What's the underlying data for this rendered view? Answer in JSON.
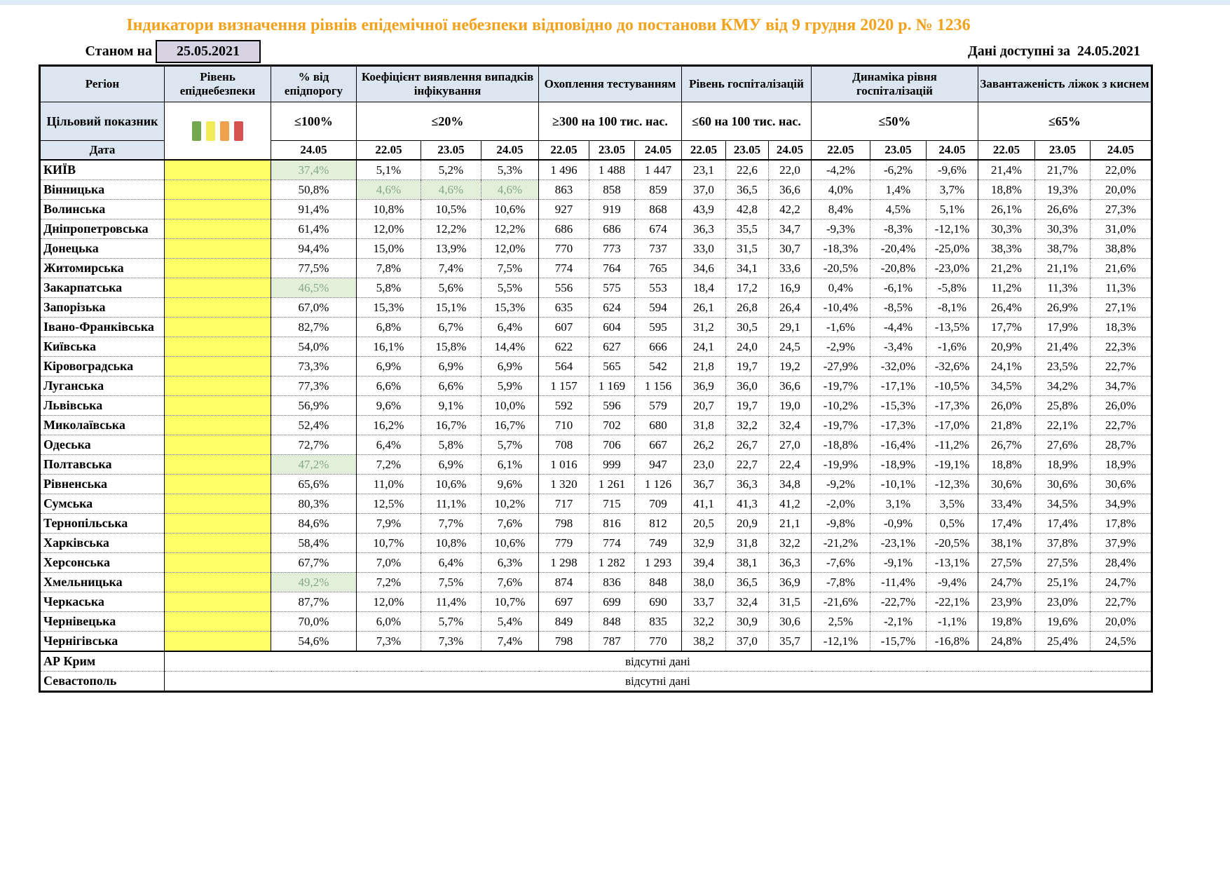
{
  "title": "Індикатори визначення рівнів епідемічної небезпеки відповідно до постанови КМУ від 9 грудня 2020 р. № 1236",
  "as_of": {
    "label": "Станом на",
    "date": "25.05.2021"
  },
  "available": {
    "label": "Дані доступні за",
    "date": "24.05.2021"
  },
  "colors": {
    "title_orange": "#F2A21C",
    "header_blue": "#DCE6F1",
    "level_yellow": "#FFFF66",
    "highlight_green_bg": "#E2EFDA",
    "highlight_green_text": "#85A785",
    "asof_box_lavender": "#D7D3E3"
  },
  "header": {
    "region": "Регіон",
    "target_label": "Цільовий показник",
    "date_label": "Дата",
    "legend_colors": [
      "#74A850",
      "#F1EB57",
      "#EFA14D",
      "#D5524F"
    ],
    "groups": [
      {
        "label": "Рівень епіднебезпеки",
        "target": "",
        "dates": []
      },
      {
        "label": "% від епідпорогу",
        "target": "≤100%",
        "dates": [
          "24.05"
        ]
      },
      {
        "label": "Коефіцієнт виявлення випадків інфікування",
        "target": "≤20%",
        "dates": [
          "22.05",
          "23.05",
          "24.05"
        ]
      },
      {
        "label": "Охоплення тестуванням",
        "target": "≥300 на 100 тис. нас.",
        "dates": [
          "22.05",
          "23.05",
          "24.05"
        ]
      },
      {
        "label": "Рівень госпіталізацій",
        "target": "≤60 на 100 тис. нас.",
        "dates": [
          "22.05",
          "23.05",
          "24.05"
        ]
      },
      {
        "label": "Динаміка рівня госпіталізацій",
        "target": "≤50%",
        "dates": [
          "22.05",
          "23.05",
          "24.05"
        ]
      },
      {
        "label": "Завантаженість ліжок з киснем",
        "target": "≤65%",
        "dates": [
          "22.05",
          "23.05",
          "24.05"
        ]
      }
    ]
  },
  "rows": [
    {
      "region": "КИЇВ",
      "pct": "37,4%",
      "pct_green": true,
      "coef": [
        "5,1%",
        "5,2%",
        "5,3%"
      ],
      "coef_green": false,
      "test": [
        "1 496",
        "1 488",
        "1 447"
      ],
      "hosp": [
        "23,1",
        "22,6",
        "22,0"
      ],
      "dyn": [
        "-4,2%",
        "-6,2%",
        "-9,6%"
      ],
      "oxy": [
        "21,4%",
        "21,7%",
        "22,0%"
      ]
    },
    {
      "region": "Вінницька",
      "pct": "50,8%",
      "pct_green": false,
      "coef": [
        "4,6%",
        "4,6%",
        "4,6%"
      ],
      "coef_green": true,
      "test": [
        "863",
        "858",
        "859"
      ],
      "hosp": [
        "37,0",
        "36,5",
        "36,6"
      ],
      "dyn": [
        "4,0%",
        "1,4%",
        "3,7%"
      ],
      "oxy": [
        "18,8%",
        "19,3%",
        "20,0%"
      ]
    },
    {
      "region": "Волинська",
      "pct": "91,4%",
      "pct_green": false,
      "coef": [
        "10,8%",
        "10,5%",
        "10,6%"
      ],
      "coef_green": false,
      "test": [
        "927",
        "919",
        "868"
      ],
      "hosp": [
        "43,9",
        "42,8",
        "42,2"
      ],
      "dyn": [
        "8,4%",
        "4,5%",
        "5,1%"
      ],
      "oxy": [
        "26,1%",
        "26,6%",
        "27,3%"
      ]
    },
    {
      "region": "Дніпропетровська",
      "pct": "61,4%",
      "pct_green": false,
      "coef": [
        "12,0%",
        "12,2%",
        "12,2%"
      ],
      "coef_green": false,
      "test": [
        "686",
        "686",
        "674"
      ],
      "hosp": [
        "36,3",
        "35,5",
        "34,7"
      ],
      "dyn": [
        "-9,3%",
        "-8,3%",
        "-12,1%"
      ],
      "oxy": [
        "30,3%",
        "30,3%",
        "31,0%"
      ]
    },
    {
      "region": "Донецька",
      "pct": "94,4%",
      "pct_green": false,
      "coef": [
        "15,0%",
        "13,9%",
        "12,0%"
      ],
      "coef_green": false,
      "test": [
        "770",
        "773",
        "737"
      ],
      "hosp": [
        "33,0",
        "31,5",
        "30,7"
      ],
      "dyn": [
        "-18,3%",
        "-20,4%",
        "-25,0%"
      ],
      "oxy": [
        "38,3%",
        "38,7%",
        "38,8%"
      ]
    },
    {
      "region": "Житомирська",
      "pct": "77,5%",
      "pct_green": false,
      "coef": [
        "7,8%",
        "7,4%",
        "7,5%"
      ],
      "coef_green": false,
      "test": [
        "774",
        "764",
        "765"
      ],
      "hosp": [
        "34,6",
        "34,1",
        "33,6"
      ],
      "dyn": [
        "-20,5%",
        "-20,8%",
        "-23,0%"
      ],
      "oxy": [
        "21,2%",
        "21,1%",
        "21,6%"
      ]
    },
    {
      "region": "Закарпатська",
      "pct": "46,5%",
      "pct_green": true,
      "coef": [
        "5,8%",
        "5,6%",
        "5,5%"
      ],
      "coef_green": false,
      "test": [
        "556",
        "575",
        "553"
      ],
      "hosp": [
        "18,4",
        "17,2",
        "16,9"
      ],
      "dyn": [
        "0,4%",
        "-6,1%",
        "-5,8%"
      ],
      "oxy": [
        "11,2%",
        "11,3%",
        "11,3%"
      ]
    },
    {
      "region": "Запорізька",
      "pct": "67,0%",
      "pct_green": false,
      "coef": [
        "15,3%",
        "15,1%",
        "15,3%"
      ],
      "coef_green": false,
      "test": [
        "635",
        "624",
        "594"
      ],
      "hosp": [
        "26,1",
        "26,8",
        "26,4"
      ],
      "dyn": [
        "-10,4%",
        "-8,5%",
        "-8,1%"
      ],
      "oxy": [
        "26,4%",
        "26,9%",
        "27,1%"
      ]
    },
    {
      "region": "Івано-Франківська",
      "pct": "82,7%",
      "pct_green": false,
      "coef": [
        "6,8%",
        "6,7%",
        "6,4%"
      ],
      "coef_green": false,
      "test": [
        "607",
        "604",
        "595"
      ],
      "hosp": [
        "31,2",
        "30,5",
        "29,1"
      ],
      "dyn": [
        "-1,6%",
        "-4,4%",
        "-13,5%"
      ],
      "oxy": [
        "17,7%",
        "17,9%",
        "18,3%"
      ]
    },
    {
      "region": "Київська",
      "pct": "54,0%",
      "pct_green": false,
      "coef": [
        "16,1%",
        "15,8%",
        "14,4%"
      ],
      "coef_green": false,
      "test": [
        "622",
        "627",
        "666"
      ],
      "hosp": [
        "24,1",
        "24,0",
        "24,5"
      ],
      "dyn": [
        "-2,9%",
        "-3,4%",
        "-1,6%"
      ],
      "oxy": [
        "20,9%",
        "21,4%",
        "22,3%"
      ]
    },
    {
      "region": "Кіровоградська",
      "pct": "73,3%",
      "pct_green": false,
      "coef": [
        "6,9%",
        "6,9%",
        "6,9%"
      ],
      "coef_green": false,
      "test": [
        "564",
        "565",
        "542"
      ],
      "hosp": [
        "21,8",
        "19,7",
        "19,2"
      ],
      "dyn": [
        "-27,9%",
        "-32,0%",
        "-32,6%"
      ],
      "oxy": [
        "24,1%",
        "23,5%",
        "22,7%"
      ]
    },
    {
      "region": "Луганська",
      "pct": "77,3%",
      "pct_green": false,
      "coef": [
        "6,6%",
        "6,6%",
        "5,9%"
      ],
      "coef_green": false,
      "test": [
        "1 157",
        "1 169",
        "1 156"
      ],
      "hosp": [
        "36,9",
        "36,0",
        "36,6"
      ],
      "dyn": [
        "-19,7%",
        "-17,1%",
        "-10,5%"
      ],
      "oxy": [
        "34,5%",
        "34,2%",
        "34,7%"
      ]
    },
    {
      "region": "Львівська",
      "pct": "56,9%",
      "pct_green": false,
      "coef": [
        "9,6%",
        "9,1%",
        "10,0%"
      ],
      "coef_green": false,
      "test": [
        "592",
        "596",
        "579"
      ],
      "hosp": [
        "20,7",
        "19,7",
        "19,0"
      ],
      "dyn": [
        "-10,2%",
        "-15,3%",
        "-17,3%"
      ],
      "oxy": [
        "26,0%",
        "25,8%",
        "26,0%"
      ]
    },
    {
      "region": "Миколаївська",
      "pct": "52,4%",
      "pct_green": false,
      "coef": [
        "16,2%",
        "16,7%",
        "16,7%"
      ],
      "coef_green": false,
      "test": [
        "710",
        "702",
        "680"
      ],
      "hosp": [
        "31,8",
        "32,2",
        "32,4"
      ],
      "dyn": [
        "-19,7%",
        "-17,3%",
        "-17,0%"
      ],
      "oxy": [
        "21,8%",
        "22,1%",
        "22,7%"
      ]
    },
    {
      "region": "Одеська",
      "pct": "72,7%",
      "pct_green": false,
      "coef": [
        "6,4%",
        "5,8%",
        "5,7%"
      ],
      "coef_green": false,
      "test": [
        "708",
        "706",
        "667"
      ],
      "hosp": [
        "26,2",
        "26,7",
        "27,0"
      ],
      "dyn": [
        "-18,8%",
        "-16,4%",
        "-11,2%"
      ],
      "oxy": [
        "26,7%",
        "27,6%",
        "28,7%"
      ]
    },
    {
      "region": "Полтавська",
      "pct": "47,2%",
      "pct_green": true,
      "coef": [
        "7,2%",
        "6,9%",
        "6,1%"
      ],
      "coef_green": false,
      "test": [
        "1 016",
        "999",
        "947"
      ],
      "hosp": [
        "23,0",
        "22,7",
        "22,4"
      ],
      "dyn": [
        "-19,9%",
        "-18,9%",
        "-19,1%"
      ],
      "oxy": [
        "18,8%",
        "18,9%",
        "18,9%"
      ]
    },
    {
      "region": "Рівненська",
      "pct": "65,6%",
      "pct_green": false,
      "coef": [
        "11,0%",
        "10,6%",
        "9,6%"
      ],
      "coef_green": false,
      "test": [
        "1 320",
        "1 261",
        "1 126"
      ],
      "hosp": [
        "36,7",
        "36,3",
        "34,8"
      ],
      "dyn": [
        "-9,2%",
        "-10,1%",
        "-12,3%"
      ],
      "oxy": [
        "30,6%",
        "30,6%",
        "30,6%"
      ]
    },
    {
      "region": "Сумська",
      "pct": "80,3%",
      "pct_green": false,
      "coef": [
        "12,5%",
        "11,1%",
        "10,2%"
      ],
      "coef_green": false,
      "test": [
        "717",
        "715",
        "709"
      ],
      "hosp": [
        "41,1",
        "41,3",
        "41,2"
      ],
      "dyn": [
        "-2,0%",
        "3,1%",
        "3,5%"
      ],
      "oxy": [
        "33,4%",
        "34,5%",
        "34,9%"
      ]
    },
    {
      "region": "Тернопільська",
      "pct": "84,6%",
      "pct_green": false,
      "coef": [
        "7,9%",
        "7,7%",
        "7,6%"
      ],
      "coef_green": false,
      "test": [
        "798",
        "816",
        "812"
      ],
      "hosp": [
        "20,5",
        "20,9",
        "21,1"
      ],
      "dyn": [
        "-9,8%",
        "-0,9%",
        "0,5%"
      ],
      "oxy": [
        "17,4%",
        "17,4%",
        "17,8%"
      ]
    },
    {
      "region": "Харківська",
      "pct": "58,4%",
      "pct_green": false,
      "coef": [
        "10,7%",
        "10,8%",
        "10,6%"
      ],
      "coef_green": false,
      "test": [
        "779",
        "774",
        "749"
      ],
      "hosp": [
        "32,9",
        "31,8",
        "32,2"
      ],
      "dyn": [
        "-21,2%",
        "-23,1%",
        "-20,5%"
      ],
      "oxy": [
        "38,1%",
        "37,8%",
        "37,9%"
      ]
    },
    {
      "region": "Херсонська",
      "pct": "67,7%",
      "pct_green": false,
      "coef": [
        "7,0%",
        "6,4%",
        "6,3%"
      ],
      "coef_green": false,
      "test": [
        "1 298",
        "1 282",
        "1 293"
      ],
      "hosp": [
        "39,4",
        "38,1",
        "36,3"
      ],
      "dyn": [
        "-7,6%",
        "-9,1%",
        "-13,1%"
      ],
      "oxy": [
        "27,5%",
        "27,5%",
        "28,4%"
      ]
    },
    {
      "region": "Хмельницька",
      "pct": "49,2%",
      "pct_green": true,
      "coef": [
        "7,2%",
        "7,5%",
        "7,6%"
      ],
      "coef_green": false,
      "test": [
        "874",
        "836",
        "848"
      ],
      "hosp": [
        "38,0",
        "36,5",
        "36,9"
      ],
      "dyn": [
        "-7,8%",
        "-11,4%",
        "-9,4%"
      ],
      "oxy": [
        "24,7%",
        "25,1%",
        "24,7%"
      ]
    },
    {
      "region": "Черкаська",
      "pct": "87,7%",
      "pct_green": false,
      "coef": [
        "12,0%",
        "11,4%",
        "10,7%"
      ],
      "coef_green": false,
      "test": [
        "697",
        "699",
        "690"
      ],
      "hosp": [
        "33,7",
        "32,4",
        "31,5"
      ],
      "dyn": [
        "-21,6%",
        "-22,7%",
        "-22,1%"
      ],
      "oxy": [
        "23,9%",
        "23,0%",
        "22,7%"
      ]
    },
    {
      "region": "Чернівецька",
      "pct": "70,0%",
      "pct_green": false,
      "coef": [
        "6,0%",
        "5,7%",
        "5,4%"
      ],
      "coef_green": false,
      "test": [
        "849",
        "848",
        "835"
      ],
      "hosp": [
        "32,2",
        "30,9",
        "30,6"
      ],
      "dyn": [
        "2,5%",
        "-2,1%",
        "-1,1%"
      ],
      "oxy": [
        "19,8%",
        "19,6%",
        "20,0%"
      ]
    },
    {
      "region": "Чернігівська",
      "pct": "54,6%",
      "pct_green": false,
      "coef": [
        "7,3%",
        "7,3%",
        "7,4%"
      ],
      "coef_green": false,
      "test": [
        "798",
        "787",
        "770"
      ],
      "hosp": [
        "38,2",
        "37,0",
        "35,7"
      ],
      "dyn": [
        "-12,1%",
        "-15,7%",
        "-16,8%"
      ],
      "oxy": [
        "24,8%",
        "25,4%",
        "24,5%"
      ]
    }
  ],
  "no_data_rows": [
    {
      "region": "АР Крим",
      "text": "відсутні дані"
    },
    {
      "region": "Севастополь",
      "text": "відсутні дані"
    }
  ]
}
